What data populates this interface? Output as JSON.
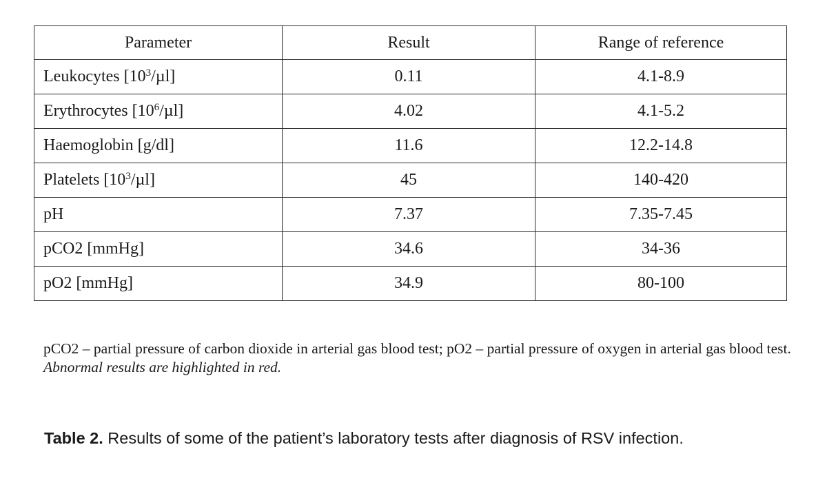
{
  "table": {
    "headers": [
      "Parameter",
      "Result",
      "Range of reference"
    ],
    "rows": [
      {
        "name": "Leukocytes [10",
        "sup": "3",
        "unit": "/µl]",
        "result": "0.11",
        "range": "4.1-8.9"
      },
      {
        "name": "Erythrocytes [10",
        "sup": "6",
        "unit": "/µl]",
        "result": "4.02",
        "range": "4.1-5.2"
      },
      {
        "name": "Haemoglobin [g/dl]",
        "sup": "",
        "unit": "",
        "result": "11.6",
        "range": "12.2-14.8"
      },
      {
        "name": "Platelets [10",
        "sup": "3",
        "unit": "/µl]",
        "result": "45",
        "range": "140-420"
      },
      {
        "name": "pH",
        "sup": "",
        "unit": "",
        "result": "7.37",
        "range": "7.35-7.45"
      },
      {
        "name": "pCO2 [mmHg]",
        "sup": "",
        "unit": "",
        "result": "34.6",
        "range": "34-36"
      },
      {
        "name": "pO2 [mmHg]",
        "sup": "",
        "unit": "",
        "result": "34.9",
        "range": "80-100"
      }
    ]
  },
  "footnote": {
    "text": "pCO2 – partial pressure of carbon dioxide in arterial gas blood test; pO2 – partial pressure of oxygen in arterial gas blood test. ",
    "italic": "Abnormal results are highlighted in red."
  },
  "caption": {
    "label": "Table 2.",
    "text": " Results of some of the patient’s  laboratory tests after diagnosis of RSV infection."
  }
}
